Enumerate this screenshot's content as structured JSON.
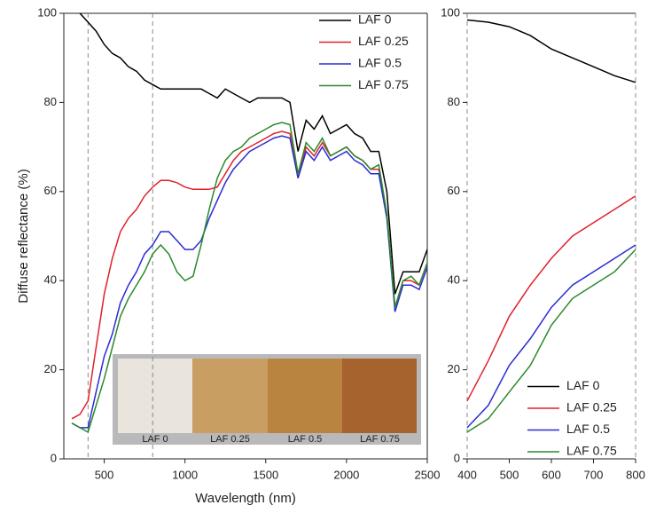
{
  "chart_data": [
    {
      "type": "line",
      "xlabel": "Wavelength (nm)",
      "ylabel": "Diffuse reflectance (%)",
      "x": [
        300,
        350,
        400,
        450,
        500,
        550,
        600,
        650,
        700,
        750,
        800,
        850,
        900,
        950,
        1000,
        1050,
        1100,
        1150,
        1200,
        1250,
        1300,
        1350,
        1400,
        1450,
        1500,
        1550,
        1600,
        1650,
        1700,
        1750,
        1800,
        1850,
        1900,
        1950,
        2000,
        2050,
        2100,
        2150,
        2200,
        2250,
        2300,
        2350,
        2400,
        2450,
        2500
      ],
      "series": [
        {
          "name": "LAF 0",
          "color": "#000000",
          "values": [
            null,
            100,
            98,
            96,
            93,
            91,
            90,
            88,
            87,
            85,
            84,
            83,
            83,
            83,
            83,
            83,
            83,
            82,
            81,
            83,
            82,
            81,
            80,
            81,
            81,
            81,
            81,
            80,
            69,
            76,
            74,
            77,
            73,
            74,
            75,
            73,
            72,
            69,
            69,
            60,
            37,
            42,
            42,
            42,
            47
          ]
        },
        {
          "name": "LAF 0.25",
          "color": "#e0212b",
          "values": [
            9,
            10,
            13,
            25,
            37,
            45,
            51,
            54,
            56,
            59,
            61,
            62.5,
            62.5,
            62,
            61,
            60.5,
            60.5,
            60.5,
            61,
            64,
            67,
            69,
            70,
            71,
            72,
            73,
            73.5,
            73,
            63,
            70,
            68,
            71,
            68,
            69,
            70,
            68,
            67,
            65,
            65,
            55,
            34,
            40,
            40,
            39,
            44
          ]
        },
        {
          "name": "LAF 0.5",
          "color": "#2b2bd6",
          "values": [
            8,
            7,
            7,
            15,
            23,
            28,
            35,
            39,
            42,
            46,
            48,
            51,
            51,
            49,
            47,
            47,
            49,
            54,
            58,
            62,
            65,
            67,
            69,
            70,
            71,
            72,
            72.5,
            72,
            63,
            69,
            67,
            70,
            67,
            68,
            69,
            67,
            66,
            64,
            64,
            54,
            33,
            39,
            39,
            38,
            43
          ]
        },
        {
          "name": "LAF 0.75",
          "color": "#2a8a2a",
          "values": [
            8,
            7,
            6,
            12,
            18,
            25,
            32,
            36,
            39,
            42,
            46,
            48,
            46,
            42,
            40,
            41,
            48,
            56,
            63,
            67,
            69,
            70,
            72,
            73,
            74,
            75,
            75.5,
            75,
            64,
            71,
            69,
            72,
            68,
            69,
            70,
            68,
            67,
            65,
            66,
            55,
            34,
            40,
            41,
            39,
            44
          ]
        }
      ],
      "xlim": [
        250,
        2500
      ],
      "ylim": [
        0,
        100
      ],
      "xticks": [
        500,
        1000,
        1500,
        2000,
        2500
      ],
      "yticks": [
        0,
        20,
        40,
        60,
        80,
        100
      ],
      "vlines": [
        400,
        800
      ],
      "legend": "upper right",
      "inset_labels": [
        "LAF 0",
        "LAF 0.25",
        "LAF 0.5",
        "LAF 0.75"
      ]
    },
    {
      "type": "line",
      "x": [
        400,
        450,
        500,
        550,
        600,
        650,
        700,
        750,
        800
      ],
      "series": [
        {
          "name": "LAF 0",
          "color": "#000000",
          "values": [
            98.5,
            98,
            97,
            95,
            92,
            90,
            88,
            86,
            84.5
          ]
        },
        {
          "name": "LAF 0.25",
          "color": "#e0212b",
          "values": [
            13,
            22,
            32,
            39,
            45,
            50,
            53,
            56,
            59
          ]
        },
        {
          "name": "LAF 0.5",
          "color": "#2b2bd6",
          "values": [
            7,
            12,
            21,
            27,
            34,
            39,
            42,
            45,
            48
          ]
        },
        {
          "name": "LAF 0.75",
          "color": "#2a8a2a",
          "values": [
            6,
            9,
            15,
            21,
            30,
            36,
            39,
            42,
            47
          ]
        }
      ],
      "xlim": [
        400,
        800
      ],
      "ylim": [
        0,
        100
      ],
      "xticks": [
        400,
        500,
        600,
        700,
        800
      ],
      "yticks": [
        0,
        20,
        40,
        60,
        80,
        100
      ],
      "legend": "lower right"
    }
  ]
}
